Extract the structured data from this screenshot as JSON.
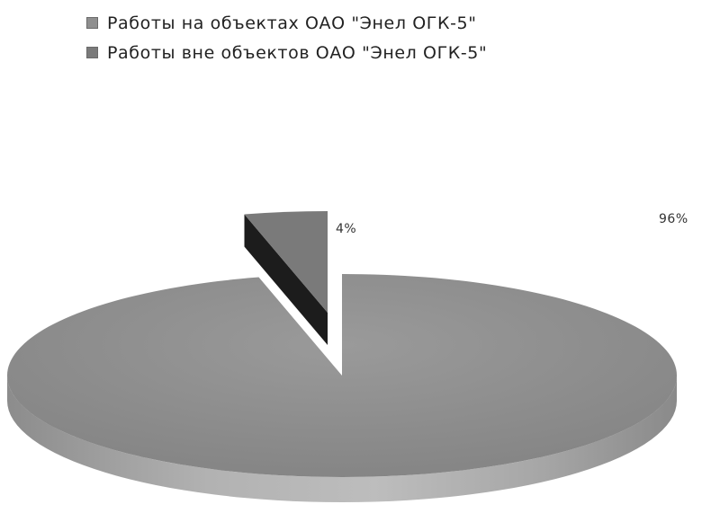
{
  "chart_data": {
    "type": "pie",
    "style": "3d-exploded",
    "legend_position": "top-left",
    "categories": [
      "Работы на объектах ОАО \"Энел ОГК-5\"",
      "Работы вне объектов ОАО \"Энел ОГК-5\""
    ],
    "values": [
      96,
      4
    ],
    "data_labels": [
      "96%",
      "4%"
    ],
    "colors": [
      "#8f8f8f",
      "#7a7a7a"
    ],
    "side_colors": [
      "#a3a3a3",
      "#1c1c1c"
    ]
  }
}
